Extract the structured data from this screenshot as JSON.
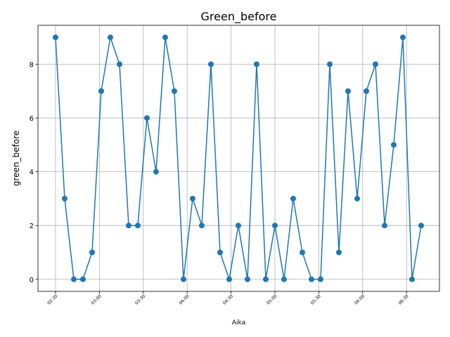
{
  "chart_data": {
    "type": "line",
    "title": "Green_before",
    "x_label": "Aika",
    "y_label": "green_before",
    "x": [
      150,
      156.25,
      162.5,
      168.75,
      175,
      181.25,
      187.5,
      193.75,
      200,
      206.25,
      212.5,
      218.75,
      225,
      231.25,
      237.5,
      243.75,
      250,
      256.25,
      262.5,
      268.75,
      275,
      281.25,
      287.5,
      293.75,
      300,
      306.25,
      312.5,
      318.75,
      325,
      331.25,
      337.5,
      343.75,
      350,
      356.25,
      362.5,
      368.75,
      375,
      381.25,
      387.5,
      393.75,
      400
    ],
    "series": [
      {
        "name": "green_before",
        "color": "#1f77b4",
        "values": [
          9,
          3,
          0,
          0,
          1,
          7,
          9,
          8,
          2,
          2,
          6,
          4,
          9,
          7,
          0,
          3,
          2,
          8,
          1,
          0,
          2,
          0,
          8,
          0,
          2,
          0,
          3,
          1,
          0,
          0,
          8,
          1,
          7,
          3,
          7,
          8,
          2,
          5,
          9,
          0,
          2
        ]
      }
    ],
    "xlim": [
      138,
      412.5
    ],
    "ylim": [
      -0.45,
      9.45
    ],
    "xticks": [
      {
        "value": 150,
        "label": "02:30"
      },
      {
        "value": 180,
        "label": "03:00"
      },
      {
        "value": 210,
        "label": "03:30"
      },
      {
        "value": 240,
        "label": "04:00"
      },
      {
        "value": 270,
        "label": "04:30"
      },
      {
        "value": 300,
        "label": "05:00"
      },
      {
        "value": 330,
        "label": "05:30"
      },
      {
        "value": 360,
        "label": "06:00"
      },
      {
        "value": 390,
        "label": "06:30"
      }
    ],
    "yticks": [
      0,
      2,
      4,
      6,
      8
    ],
    "grid": true
  }
}
